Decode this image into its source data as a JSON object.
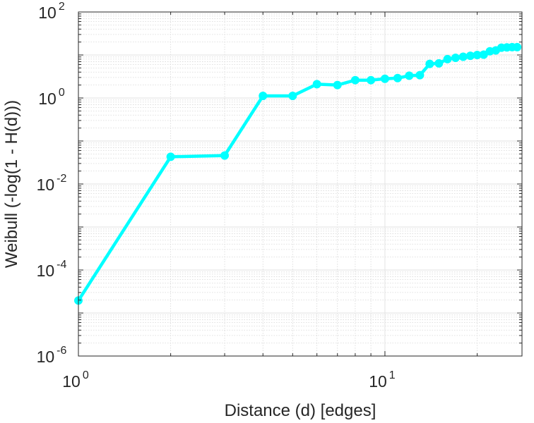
{
  "chart_data": {
    "type": "line",
    "title": "",
    "xlabel": "Distance (d) [edges]",
    "ylabel": "Weibull (-log(1 - H(d)))",
    "xscale": "log",
    "yscale": "log",
    "xlim": [
      1,
      28
    ],
    "ylim": [
      1e-06,
      100
    ],
    "grid": true,
    "minor_grid": true,
    "line_color": "#00FFFF",
    "marker": "circle",
    "x_ticks": [
      {
        "base": "10",
        "exp": "0",
        "value": 1
      },
      {
        "base": "10",
        "exp": "1",
        "value": 10
      }
    ],
    "y_ticks": [
      {
        "base": "10",
        "exp": "-6",
        "value": 1e-06
      },
      {
        "base": "10",
        "exp": "-4",
        "value": 0.0001
      },
      {
        "base": "10",
        "exp": "-2",
        "value": 0.01
      },
      {
        "base": "10",
        "exp": "0",
        "value": 1
      },
      {
        "base": "10",
        "exp": "2",
        "value": 100
      }
    ],
    "series": [
      {
        "x": [
          1,
          2,
          3,
          4,
          5,
          6,
          7,
          8,
          9,
          10,
          11,
          12,
          13,
          14,
          15,
          16,
          17,
          18,
          19,
          20,
          21,
          22,
          23,
          24,
          25,
          26,
          27
        ],
        "y": [
          1.95e-05,
          0.043,
          0.046,
          1.12,
          1.12,
          2.1,
          2.0,
          2.6,
          2.6,
          2.8,
          2.9,
          3.3,
          3.4,
          6.2,
          6.4,
          8.0,
          8.6,
          9.1,
          9.6,
          10.0,
          10.2,
          12.2,
          12.8,
          14.8,
          15.0,
          15.2,
          15.2
        ]
      }
    ]
  }
}
